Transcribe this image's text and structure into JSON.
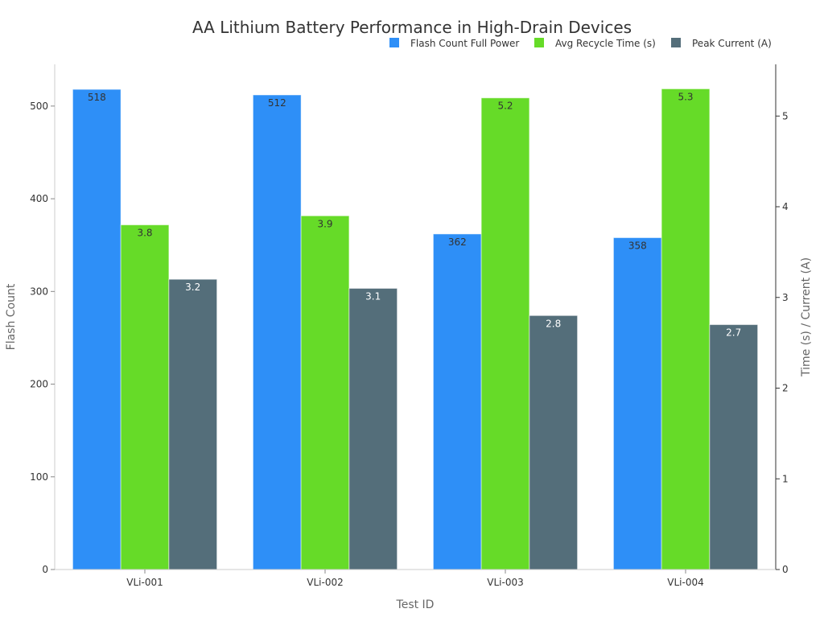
{
  "chart_data": {
    "type": "bar",
    "title": "AA Lithium Battery Performance in High-Drain Devices",
    "xlabel": "Test ID",
    "ylabel": "Flash Count",
    "ylabel_right": "Time (s) / Current (A)",
    "categories": [
      "VLi-001",
      "VLi-002",
      "VLi-003",
      "VLi-004"
    ],
    "series": [
      {
        "name": "Flash Count Full Power",
        "axis": "left",
        "color": "#2E8FF7",
        "label_color": "#333333",
        "values": [
          518,
          512,
          362,
          358
        ]
      },
      {
        "name": "Avg Recycle Time (s)",
        "axis": "right",
        "color": "#66DB28",
        "label_color": "#333333",
        "values": [
          3.8,
          3.9,
          5.2,
          5.3
        ]
      },
      {
        "name": "Peak Current (A)",
        "axis": "right",
        "color": "#546E7A",
        "label_color": "#ffffff",
        "values": [
          3.2,
          3.1,
          2.8,
          2.7
        ]
      }
    ],
    "ylim": [
      0,
      545
    ],
    "ylim_right": [
      0,
      5.57
    ],
    "yticks": [
      0,
      100,
      200,
      300,
      400,
      500
    ],
    "yticks_right": [
      0,
      1,
      2,
      3,
      4,
      5
    ],
    "grid": false,
    "legend_placement": "top-right"
  }
}
